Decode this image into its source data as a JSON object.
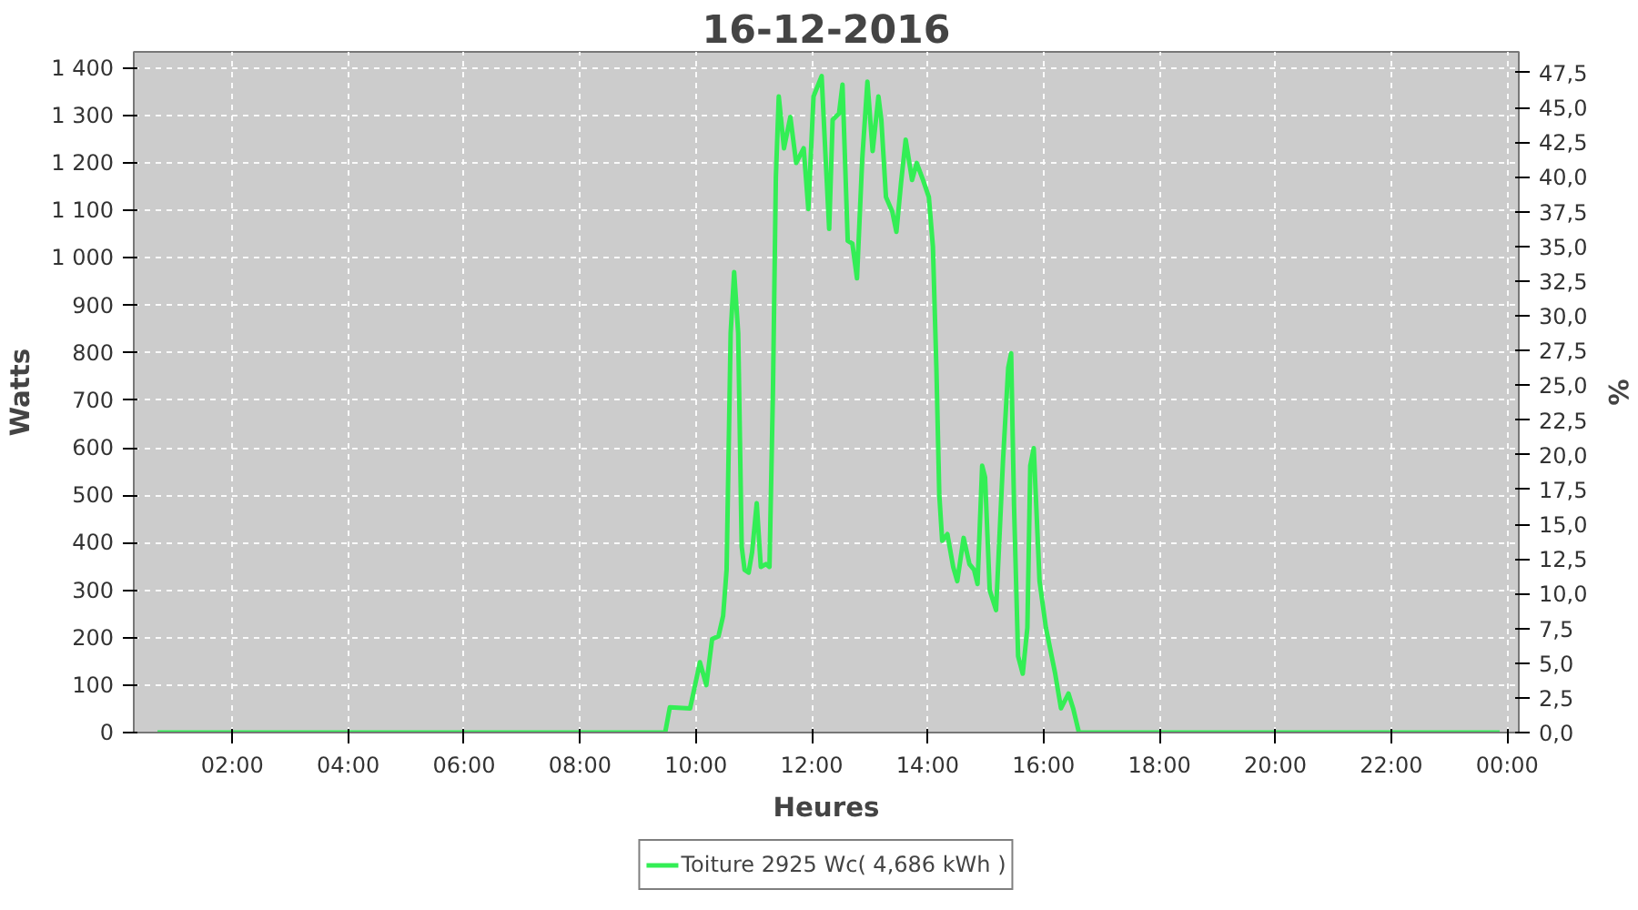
{
  "chart_data": {
    "type": "line",
    "title": "16-12-2016",
    "xlabel": "Heures",
    "ylabel": "Watts",
    "y2label": "%",
    "x": [
      0.71,
      9.47,
      9.55,
      9.9,
      10.07,
      10.18,
      10.28,
      10.39,
      10.47,
      10.53,
      10.6,
      10.66,
      10.73,
      10.79,
      10.84,
      10.91,
      10.97,
      11.05,
      11.12,
      11.21,
      11.27,
      11.33,
      11.38,
      11.43,
      11.52,
      11.63,
      11.73,
      11.86,
      11.94,
      12.03,
      12.17,
      12.24,
      12.3,
      12.36,
      12.47,
      12.53,
      12.62,
      12.7,
      12.78,
      12.87,
      12.96,
      13.05,
      13.15,
      13.2,
      13.28,
      13.39,
      13.46,
      13.54,
      13.62,
      13.73,
      13.81,
      13.92,
      14.02,
      14.09,
      14.15,
      14.2,
      14.25,
      14.34,
      14.44,
      14.51,
      14.62,
      14.72,
      14.8,
      14.86,
      14.94,
      14.99,
      15.07,
      15.18,
      15.3,
      15.39,
      15.44,
      15.49,
      15.56,
      15.64,
      15.72,
      15.77,
      15.83,
      15.93,
      16.04,
      16.2,
      16.3,
      16.43,
      16.51,
      16.61,
      23.87
    ],
    "series": [
      {
        "name": "Toiture 2925 Wc( 4,686 kWh )",
        "color": "#33ee55",
        "values": [
          0,
          0,
          53,
          51,
          148,
          100,
          197,
          203,
          246,
          343,
          842,
          970,
          842,
          392,
          343,
          337,
          380,
          483,
          349,
          355,
          349,
          720,
          1170,
          1340,
          1231,
          1297,
          1200,
          1231,
          1103,
          1340,
          1383,
          1207,
          1061,
          1291,
          1304,
          1365,
          1036,
          1030,
          957,
          1207,
          1371,
          1225,
          1340,
          1291,
          1128,
          1097,
          1055,
          1158,
          1249,
          1164,
          1200,
          1164,
          1128,
          1024,
          769,
          501,
          404,
          418,
          349,
          319,
          410,
          355,
          343,
          313,
          562,
          538,
          300,
          258,
          574,
          769,
          799,
          477,
          161,
          124,
          221,
          562,
          599,
          319,
          221,
          124,
          51,
          82,
          51,
          0,
          0
        ]
      }
    ],
    "xlim": [
      0.3,
      24.2
    ],
    "xticks": [
      {
        "value": 2,
        "label": "02:00"
      },
      {
        "value": 4,
        "label": "04:00"
      },
      {
        "value": 6,
        "label": "06:00"
      },
      {
        "value": 8,
        "label": "08:00"
      },
      {
        "value": 10,
        "label": "10:00"
      },
      {
        "value": 12,
        "label": "12:00"
      },
      {
        "value": 14,
        "label": "14:00"
      },
      {
        "value": 16,
        "label": "16:00"
      },
      {
        "value": 18,
        "label": "18:00"
      },
      {
        "value": 20,
        "label": "20:00"
      },
      {
        "value": 22,
        "label": "22:00"
      },
      {
        "value": 24,
        "label": "00:00"
      }
    ],
    "ylim": [
      0,
      1434
    ],
    "yticks": [
      0,
      100,
      200,
      300,
      400,
      500,
      600,
      700,
      800,
      900,
      {
        "value": 1000,
        "label": "1 000"
      },
      {
        "value": 1100,
        "label": "1 100"
      },
      {
        "value": 1200,
        "label": "1 200"
      },
      {
        "value": 1300,
        "label": "1 300"
      },
      {
        "value": 1400,
        "label": "1 400"
      }
    ],
    "y2lim": [
      0,
      49.0
    ],
    "y2ticks": [
      {
        "value": 0,
        "label": "0,0"
      },
      {
        "value": 2.5,
        "label": "2,5"
      },
      {
        "value": 5,
        "label": "5,0"
      },
      {
        "value": 7.5,
        "label": "7,5"
      },
      {
        "value": 10,
        "label": "10,0"
      },
      {
        "value": 12.5,
        "label": "12,5"
      },
      {
        "value": 15,
        "label": "15,0"
      },
      {
        "value": 17.5,
        "label": "17,5"
      },
      {
        "value": 20,
        "label": "20,0"
      },
      {
        "value": 22.5,
        "label": "22,5"
      },
      {
        "value": 25,
        "label": "25,0"
      },
      {
        "value": 27.5,
        "label": "27,5"
      },
      {
        "value": 30,
        "label": "30,0"
      },
      {
        "value": 32.5,
        "label": "32,5"
      },
      {
        "value": 35,
        "label": "35,0"
      },
      {
        "value": 37.5,
        "label": "37,5"
      },
      {
        "value": 40,
        "label": "40,0"
      },
      {
        "value": 42.5,
        "label": "42,5"
      },
      {
        "value": 45,
        "label": "45,0"
      },
      {
        "value": 47.5,
        "label": "47,5"
      }
    ],
    "grid": true,
    "legend": "bottom",
    "marker": "none",
    "line_style": "solid"
  }
}
